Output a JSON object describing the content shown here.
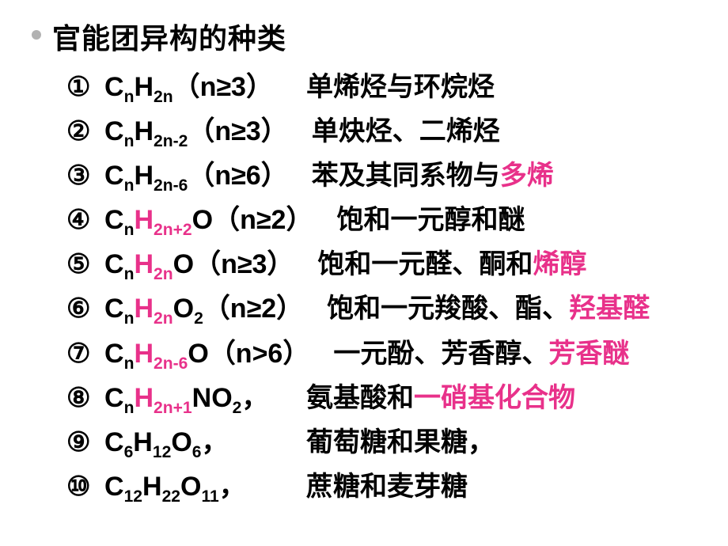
{
  "colors": {
    "bullet": "#b2b2b2",
    "text": "#000000",
    "highlight": "#e8318a"
  },
  "title": "官能团异构的种类",
  "circled_nums": [
    "①",
    "②",
    "③",
    "④",
    "⑤",
    "⑥",
    "⑦",
    "⑧",
    "⑨",
    "⑩"
  ],
  "items": [
    {
      "formula_parts": [
        {
          "t": "C",
          "sub": false
        },
        {
          "t": "n",
          "sub": true
        },
        {
          "t": "H",
          "sub": false
        },
        {
          "t": "2n",
          "sub": true
        }
      ],
      "h_color_sub": false,
      "cond": "（n≥3）",
      "desc_parts": [
        {
          "t": "单烯烃与环烷烃",
          "hl": false
        }
      ]
    },
    {
      "formula_parts": [
        {
          "t": "C",
          "sub": false
        },
        {
          "t": "n",
          "sub": true
        },
        {
          "t": "H",
          "sub": false
        },
        {
          "t": "2n-2",
          "sub": true
        }
      ],
      "h_color_sub": false,
      "cond": "（n≥3）",
      "desc_parts": [
        {
          "t": "单炔烃、二烯烃",
          "hl": false
        }
      ]
    },
    {
      "formula_parts": [
        {
          "t": "C",
          "sub": false
        },
        {
          "t": "n",
          "sub": true
        },
        {
          "t": "H",
          "sub": false
        },
        {
          "t": "2n-6",
          "sub": true
        }
      ],
      "h_color_sub": false,
      "cond": "（n≥6）",
      "desc_parts": [
        {
          "t": "苯及其同系物与",
          "hl": false
        },
        {
          "t": "多烯",
          "hl": true
        }
      ]
    },
    {
      "formula_parts": [
        {
          "t": "C",
          "sub": false
        },
        {
          "t": "n",
          "sub": true
        },
        {
          "t": "H",
          "sub": false,
          "hl": true
        },
        {
          "t": "2n+2",
          "sub": true,
          "hl": true
        },
        {
          "t": "O",
          "sub": false
        }
      ],
      "cond": "（n≥2）",
      "desc_parts": [
        {
          "t": "饱和一元醇和醚",
          "hl": false
        }
      ]
    },
    {
      "formula_parts": [
        {
          "t": "C",
          "sub": false
        },
        {
          "t": "n",
          "sub": true
        },
        {
          "t": "H",
          "sub": false,
          "hl": true
        },
        {
          "t": "2n",
          "sub": true,
          "hl": true
        },
        {
          "t": "O",
          "sub": false
        }
      ],
      "cond": "（n≥3）",
      "desc_parts": [
        {
          "t": "饱和一元醛、酮和",
          "hl": false
        },
        {
          "t": "烯醇",
          "hl": true
        }
      ]
    },
    {
      "formula_parts": [
        {
          "t": "C",
          "sub": false
        },
        {
          "t": "n",
          "sub": true
        },
        {
          "t": "H",
          "sub": false,
          "hl": true
        },
        {
          "t": "2n",
          "sub": true,
          "hl": true
        },
        {
          "t": "O",
          "sub": false
        },
        {
          "t": "2",
          "sub": true
        }
      ],
      "cond": "（n≥2）",
      "desc_parts": [
        {
          "t": "饱和一元羧酸、酯、",
          "hl": false
        },
        {
          "t": "羟基醛",
          "hl": true
        }
      ]
    },
    {
      "formula_parts": [
        {
          "t": "C",
          "sub": false
        },
        {
          "t": "n",
          "sub": true
        },
        {
          "t": "H",
          "sub": false,
          "hl": true
        },
        {
          "t": "2n-6",
          "sub": true,
          "hl": true
        },
        {
          "t": "O",
          "sub": false
        }
      ],
      "cond": "（n>6）",
      "desc_parts": [
        {
          "t": "一元酚、芳香醇、",
          "hl": false
        },
        {
          "t": "芳香醚",
          "hl": true
        }
      ]
    },
    {
      "formula_parts": [
        {
          "t": "C",
          "sub": false
        },
        {
          "t": "n",
          "sub": true
        },
        {
          "t": "H",
          "sub": false,
          "hl": true
        },
        {
          "t": "2n+1",
          "sub": true,
          "hl": true
        },
        {
          "t": "NO",
          "sub": false
        },
        {
          "t": "2",
          "sub": true
        }
      ],
      "cond": "，",
      "desc_parts": [
        {
          "t": "氨基酸和",
          "hl": false
        },
        {
          "t": "一硝基化合物",
          "hl": true
        }
      ]
    },
    {
      "formula_parts": [
        {
          "t": "C",
          "sub": false
        },
        {
          "t": "6",
          "sub": true
        },
        {
          "t": "H",
          "sub": false
        },
        {
          "t": "12",
          "sub": true
        },
        {
          "t": "O",
          "sub": false
        },
        {
          "t": "6",
          "sub": true
        }
      ],
      "cond": "，",
      "desc_parts": [
        {
          "t": "葡萄糖和果糖，",
          "hl": false
        }
      ]
    },
    {
      "formula_parts": [
        {
          "t": "C",
          "sub": false
        },
        {
          "t": "12",
          "sub": true
        },
        {
          "t": "H",
          "sub": false
        },
        {
          "t": "22",
          "sub": true
        },
        {
          "t": "O",
          "sub": false
        },
        {
          "t": "11",
          "sub": true
        }
      ],
      "cond": "，",
      "desc_parts": [
        {
          "t": "蔗糖和麦芽糖",
          "hl": false
        }
      ]
    }
  ]
}
